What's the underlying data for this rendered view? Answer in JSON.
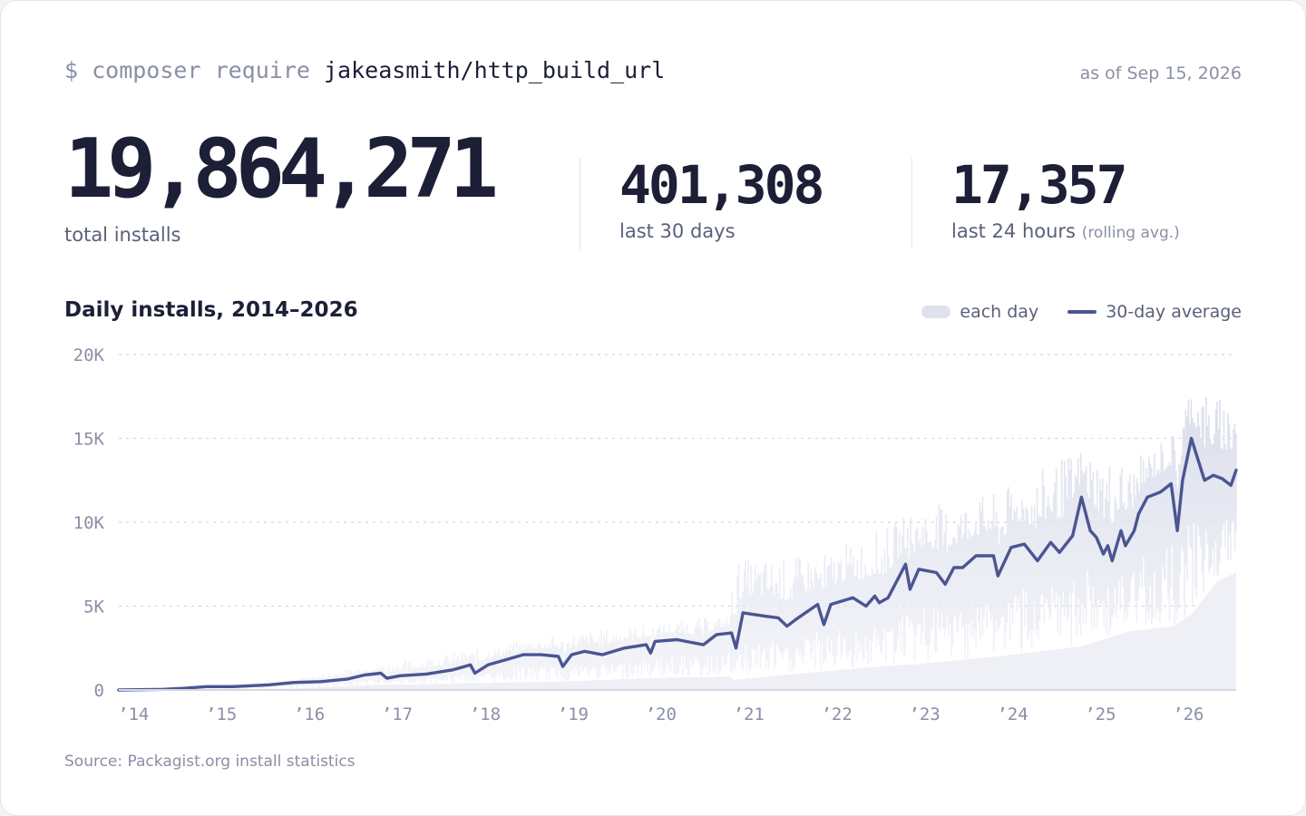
{
  "header": {
    "command_prefix": "$ composer require",
    "package": "jakeasmith/http_build_url",
    "as_of": "as of Sep 15, 2026"
  },
  "stats": {
    "total": {
      "value": "19,864,271",
      "label": "total installs"
    },
    "last30": {
      "value": "401,308",
      "label": "last 30 days"
    },
    "last24": {
      "value": "17,357",
      "label": "last 24 hours",
      "sublabel": "(rolling avg.)"
    }
  },
  "chart": {
    "title": "Daily installs, 2014–2026",
    "legend": {
      "band": "each day",
      "line": "30-day average"
    },
    "source": "Source: Packagist.org install statistics"
  },
  "colors": {
    "line": "#4b5592",
    "band": "#dfe1ec",
    "grid": "#d5d8e2",
    "text_dark": "#1c1f36",
    "text_muted": "#8b8fa5"
  },
  "chart_data": {
    "type": "area",
    "title": "Daily installs, 2014–2026",
    "x_start": 2014.0,
    "x_end": 2026.71,
    "ylim": [
      0,
      20000
    ],
    "y_ticks": [
      0,
      5000,
      10000,
      15000,
      20000
    ],
    "y_tick_labels": [
      "0",
      "5K",
      "10K",
      "15K",
      "20K"
    ],
    "x_ticks": [
      2014,
      2015,
      2016,
      2017,
      2018,
      2019,
      2020,
      2021,
      2022,
      2023,
      2024,
      2025,
      2026
    ],
    "x_tick_labels": [
      "’14",
      "’15",
      "’16",
      "’17",
      "’18",
      "’19",
      "’20",
      "’21",
      "’22",
      "’23",
      "’24",
      "’25",
      "’26"
    ],
    "grid": true,
    "legend_position": "top-right",
    "series": [
      {
        "name": "30-day average",
        "points": [
          [
            2014.0,
            0
          ],
          [
            2014.5,
            40
          ],
          [
            2014.75,
            100
          ],
          [
            2015.0,
            200
          ],
          [
            2015.3,
            200
          ],
          [
            2015.7,
            300
          ],
          [
            2016.0,
            450
          ],
          [
            2016.3,
            500
          ],
          [
            2016.6,
            650
          ],
          [
            2016.8,
            900
          ],
          [
            2016.98,
            1000
          ],
          [
            2017.05,
            700
          ],
          [
            2017.2,
            850
          ],
          [
            2017.5,
            950
          ],
          [
            2017.8,
            1200
          ],
          [
            2018.0,
            1500
          ],
          [
            2018.05,
            1000
          ],
          [
            2018.2,
            1500
          ],
          [
            2018.4,
            1800
          ],
          [
            2018.6,
            2100
          ],
          [
            2018.8,
            2100
          ],
          [
            2019.0,
            2000
          ],
          [
            2019.05,
            1400
          ],
          [
            2019.15,
            2100
          ],
          [
            2019.3,
            2300
          ],
          [
            2019.5,
            2100
          ],
          [
            2019.75,
            2500
          ],
          [
            2020.0,
            2700
          ],
          [
            2020.05,
            2200
          ],
          [
            2020.1,
            2900
          ],
          [
            2020.35,
            3000
          ],
          [
            2020.65,
            2700
          ],
          [
            2020.8,
            3300
          ],
          [
            2020.97,
            3400
          ],
          [
            2021.02,
            2500
          ],
          [
            2021.1,
            4600
          ],
          [
            2021.35,
            4400
          ],
          [
            2021.5,
            4300
          ],
          [
            2021.6,
            3800
          ],
          [
            2021.7,
            4200
          ],
          [
            2021.95,
            5100
          ],
          [
            2022.02,
            3900
          ],
          [
            2022.1,
            5100
          ],
          [
            2022.35,
            5500
          ],
          [
            2022.5,
            5000
          ],
          [
            2022.6,
            5600
          ],
          [
            2022.65,
            5200
          ],
          [
            2022.75,
            5500
          ],
          [
            2022.95,
            7500
          ],
          [
            2023.0,
            6000
          ],
          [
            2023.1,
            7200
          ],
          [
            2023.3,
            7000
          ],
          [
            2023.4,
            6300
          ],
          [
            2023.5,
            7300
          ],
          [
            2023.6,
            7300
          ],
          [
            2023.75,
            8000
          ],
          [
            2023.95,
            8000
          ],
          [
            2024.0,
            6800
          ],
          [
            2024.15,
            8500
          ],
          [
            2024.3,
            8700
          ],
          [
            2024.45,
            7700
          ],
          [
            2024.6,
            8800
          ],
          [
            2024.7,
            8200
          ],
          [
            2024.85,
            9200
          ],
          [
            2024.95,
            11500
          ],
          [
            2025.05,
            9500
          ],
          [
            2025.12,
            9100
          ],
          [
            2025.2,
            8100
          ],
          [
            2025.25,
            8600
          ],
          [
            2025.3,
            7700
          ],
          [
            2025.4,
            9500
          ],
          [
            2025.45,
            8600
          ],
          [
            2025.55,
            9500
          ],
          [
            2025.6,
            10500
          ],
          [
            2025.7,
            11500
          ],
          [
            2025.85,
            11800
          ],
          [
            2025.97,
            12300
          ],
          [
            2026.04,
            9500
          ],
          [
            2026.1,
            12500
          ],
          [
            2026.2,
            15000
          ],
          [
            2026.35,
            12500
          ],
          [
            2026.45,
            12800
          ],
          [
            2026.55,
            12600
          ],
          [
            2026.65,
            12200
          ],
          [
            2026.71,
            13100
          ]
        ]
      },
      {
        "name": "each day",
        "band": [
          [
            2014.0,
            0,
            0
          ],
          [
            2015.0,
            50,
            350
          ],
          [
            2016.0,
            100,
            700
          ],
          [
            2016.7,
            250,
            1400
          ],
          [
            2017.0,
            300,
            1600
          ],
          [
            2018.0,
            400,
            2400
          ],
          [
            2019.0,
            500,
            3300
          ],
          [
            2020.0,
            700,
            3900
          ],
          [
            2020.95,
            800,
            4500
          ],
          [
            2021.0,
            600,
            7800
          ],
          [
            2022.0,
            1100,
            8100
          ],
          [
            2022.9,
            1500,
            10200
          ],
          [
            2023.0,
            1500,
            10800
          ],
          [
            2024.0,
            2000,
            11800
          ],
          [
            2024.95,
            2600,
            14500
          ],
          [
            2025.5,
            3500,
            13500
          ],
          [
            2026.0,
            3800,
            15500
          ],
          [
            2026.2,
            4500,
            18500
          ],
          [
            2026.5,
            6500,
            17500
          ],
          [
            2026.71,
            7000,
            18000
          ]
        ]
      }
    ]
  }
}
